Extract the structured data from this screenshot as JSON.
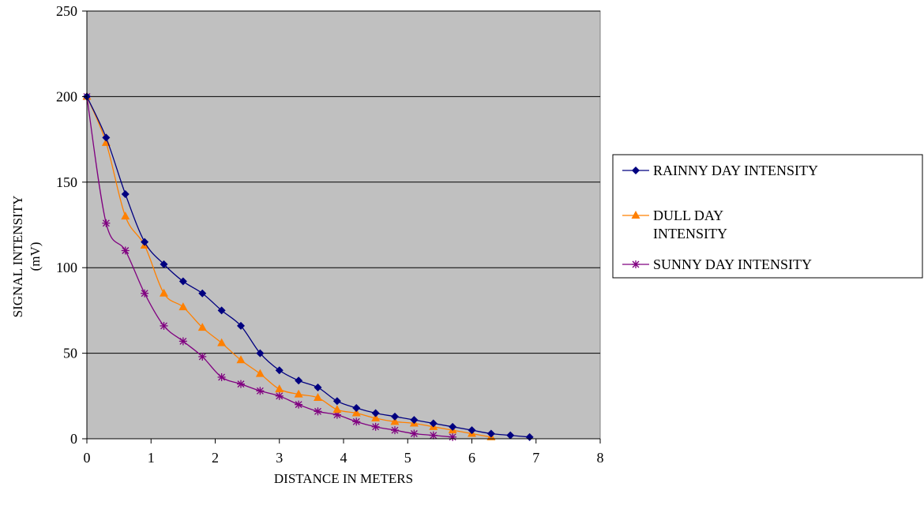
{
  "chart_data": {
    "type": "line",
    "xlabel": "DISTANCE IN METERS",
    "ylabel": [
      "SIGNAL  INTENSITY",
      "(mV)"
    ],
    "xlim": [
      0,
      8
    ],
    "ylim": [
      0,
      250
    ],
    "xticks": [
      0,
      1,
      2,
      3,
      4,
      5,
      6,
      7,
      8
    ],
    "yticks": [
      0,
      50,
      100,
      150,
      200,
      250
    ],
    "grid": "horizontal",
    "plot_background": "#c0c0c0",
    "legend_position": "right",
    "series": [
      {
        "name": "RAINNY DAY INTENSITY",
        "legend_lines": [
          "RAINNY DAY INTENSITY"
        ],
        "color": "#000080",
        "marker": "diamond",
        "x": [
          0,
          0.3,
          0.6,
          0.9,
          1.2,
          1.5,
          1.8,
          2.1,
          2.4,
          2.7,
          3.0,
          3.3,
          3.6,
          3.9,
          4.2,
          4.5,
          4.8,
          5.1,
          5.4,
          5.7,
          6.0,
          6.3,
          6.6,
          6.9
        ],
        "y": [
          200,
          176,
          143,
          115,
          102,
          92,
          85,
          75,
          66,
          50,
          40,
          34,
          30,
          22,
          18,
          15,
          13,
          11,
          9,
          7,
          5,
          3,
          2,
          1
        ]
      },
      {
        "name": "DULL DAY INTENSITY",
        "legend_lines": [
          "DULL DAY",
          "INTENSITY"
        ],
        "color": "#ff8000",
        "marker": "triangle",
        "x": [
          0,
          0.3,
          0.6,
          0.9,
          1.2,
          1.5,
          1.8,
          2.1,
          2.4,
          2.7,
          3.0,
          3.3,
          3.6,
          3.9,
          4.2,
          4.5,
          4.8,
          5.1,
          5.4,
          5.7,
          6.0,
          6.3
        ],
        "y": [
          200,
          173,
          130,
          113,
          85,
          77,
          65,
          56,
          46,
          38,
          29,
          26,
          24,
          17,
          15,
          12,
          10,
          9,
          7,
          5,
          3,
          1
        ]
      },
      {
        "name": "SUNNY DAY INTENSITY",
        "legend_lines": [
          "SUNNY DAY INTENSITY"
        ],
        "color": "#800080",
        "marker": "asterisk",
        "x": [
          0,
          0.3,
          0.6,
          0.9,
          1.2,
          1.5,
          1.8,
          2.1,
          2.4,
          2.7,
          3.0,
          3.3,
          3.6,
          3.9,
          4.2,
          4.5,
          4.8,
          5.1,
          5.4,
          5.7
        ],
        "y": [
          200,
          126,
          110,
          85,
          66,
          57,
          48,
          36,
          32,
          28,
          25,
          20,
          16,
          14,
          10,
          7,
          5,
          3,
          2,
          1
        ]
      }
    ]
  }
}
